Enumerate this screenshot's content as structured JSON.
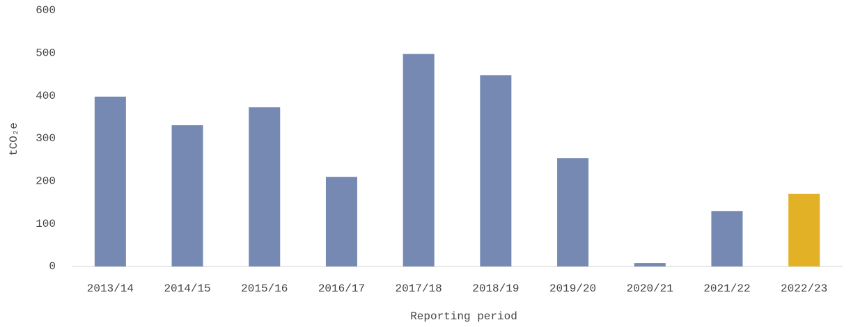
{
  "chart_data": {
    "type": "bar",
    "categories": [
      "2013/14",
      "2014/15",
      "2015/16",
      "2016/17",
      "2017/18",
      "2018/19",
      "2019/20",
      "2020/21",
      "2021/22",
      "2022/23"
    ],
    "values": [
      398,
      331,
      373,
      210,
      498,
      448,
      254,
      8,
      130,
      170
    ],
    "colors": [
      "#7589b2",
      "#7589b2",
      "#7589b2",
      "#7589b2",
      "#7589b2",
      "#7589b2",
      "#7589b2",
      "#7589b2",
      "#7589b2",
      "#e2b125"
    ],
    "xlabel": "Reporting period",
    "ylabel": "tCO₂e",
    "ylim": [
      0,
      600
    ],
    "yticks": [
      0,
      100,
      200,
      300,
      400,
      500,
      600
    ],
    "grid": false
  }
}
